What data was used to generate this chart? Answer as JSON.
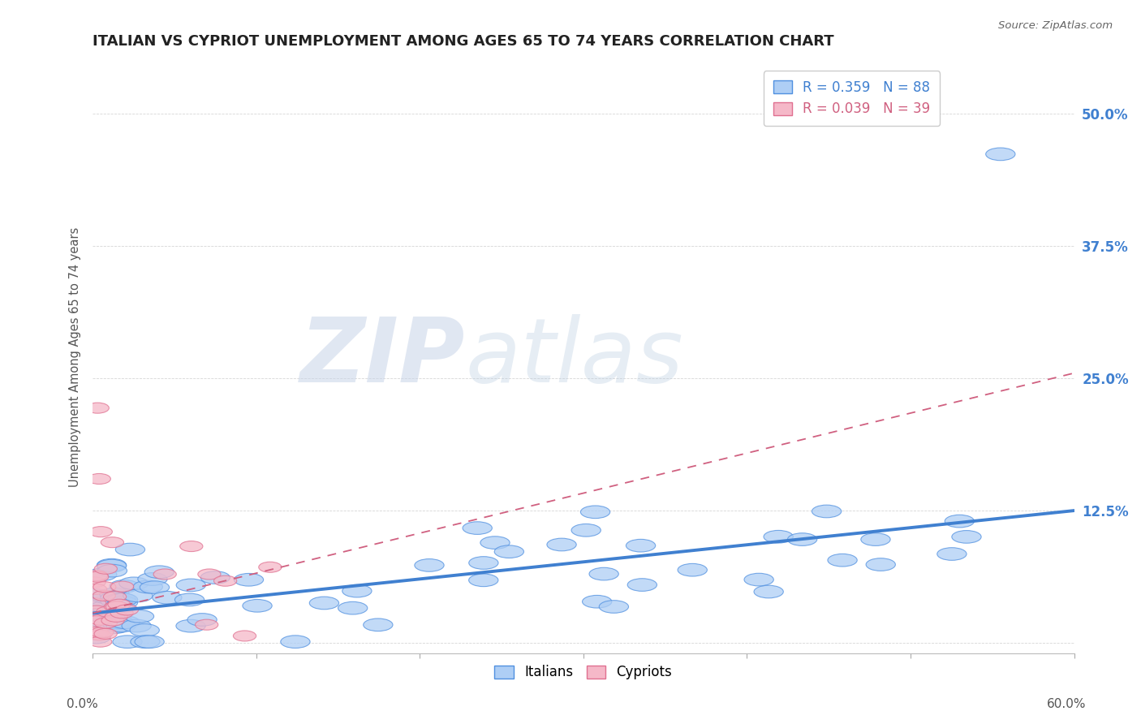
{
  "title": "ITALIAN VS CYPRIOT UNEMPLOYMENT AMONG AGES 65 TO 74 YEARS CORRELATION CHART",
  "source": "Source: ZipAtlas.com",
  "ylabel": "Unemployment Among Ages 65 to 74 years",
  "xlim": [
    0.0,
    0.6
  ],
  "ylim": [
    -0.01,
    0.55
  ],
  "yticks": [
    0.0,
    0.125,
    0.25,
    0.375,
    0.5
  ],
  "ytick_labels": [
    "",
    "12.5%",
    "25.0%",
    "37.5%",
    "50.0%"
  ],
  "italian_color": "#aecef5",
  "italian_line_color": "#4080d0",
  "italian_edge_color": "#5090e0",
  "cypriot_color": "#f5b8c8",
  "cypriot_line_color": "#d06080",
  "cypriot_edge_color": "#e07090",
  "background_color": "#ffffff",
  "grid_color": "#cccccc",
  "title_color": "#333333",
  "italian_trend_start_y": 0.028,
  "italian_trend_end_y": 0.125,
  "cypriot_trend_start_y": 0.028,
  "cypriot_trend_end_y": 0.255
}
